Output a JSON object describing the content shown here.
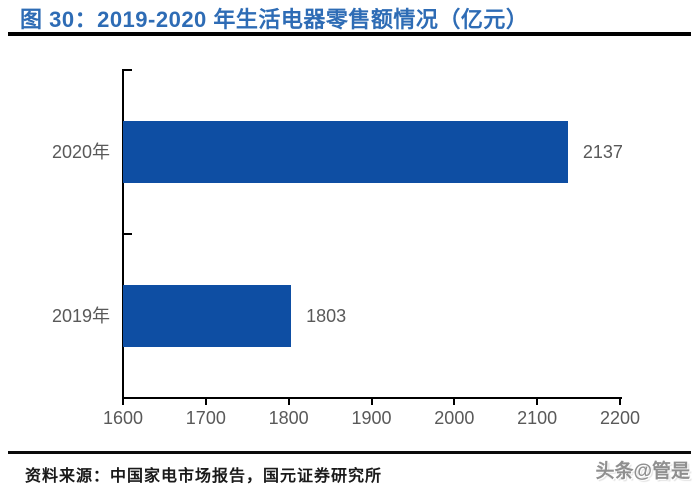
{
  "header": {
    "title": "图 30：2019-2020 年生活电器零售额情况（亿元）"
  },
  "chart_data": {
    "type": "bar",
    "orientation": "horizontal",
    "title": "2019-2020 年生活电器零售额情况（亿元）",
    "categories": [
      "2020年",
      "2019年"
    ],
    "values": [
      2137,
      1803
    ],
    "value_labels": [
      "2137",
      "1803"
    ],
    "xlim": [
      1600,
      2200
    ],
    "x_ticks": [
      "1600",
      "1700",
      "1800",
      "1900",
      "2000",
      "2100",
      "2200"
    ],
    "grid": false,
    "legend": "none",
    "bar_color": "#0E4EA3",
    "axis_text_color": "#595959"
  },
  "footer": {
    "source": "资料来源：中国家电市场报告，国元证券研究所",
    "watermark": "头条@管是"
  }
}
